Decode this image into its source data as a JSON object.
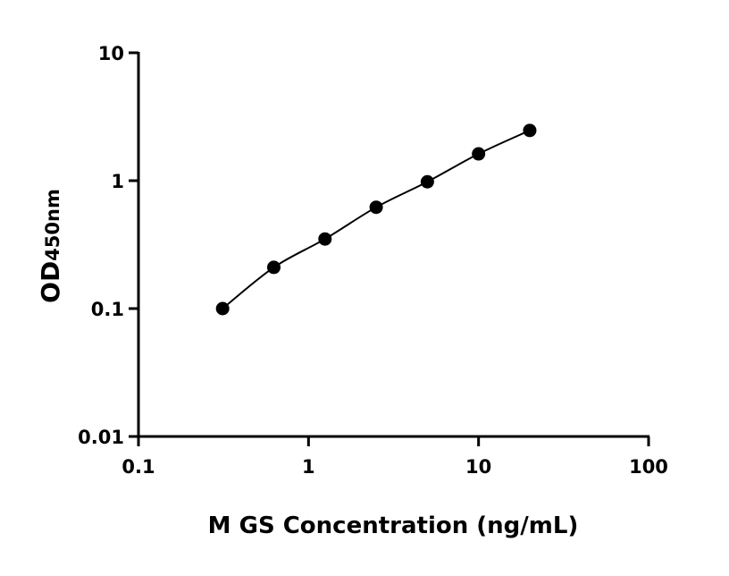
{
  "chart_data": {
    "type": "scatter",
    "xlabel": "M GS Concentration (ng/mL)",
    "ylabel": "OD",
    "ylabel_subscript": "450nm",
    "x_scale": "log",
    "y_scale": "log",
    "xlim": [
      0.1,
      100
    ],
    "ylim": [
      0.01,
      10
    ],
    "x_ticks": [
      "0.1",
      "1",
      "10",
      "100"
    ],
    "y_ticks": [
      "0.01",
      "0.1",
      "1",
      "10"
    ],
    "grid": false,
    "fit_curve": true,
    "marker_color": "#000000",
    "series": [
      {
        "x": [
          0.3125,
          0.625,
          1.25,
          2.5,
          5,
          10,
          20
        ],
        "y": [
          0.1,
          0.21,
          0.35,
          0.62,
          0.98,
          1.62,
          2.47
        ]
      }
    ]
  }
}
